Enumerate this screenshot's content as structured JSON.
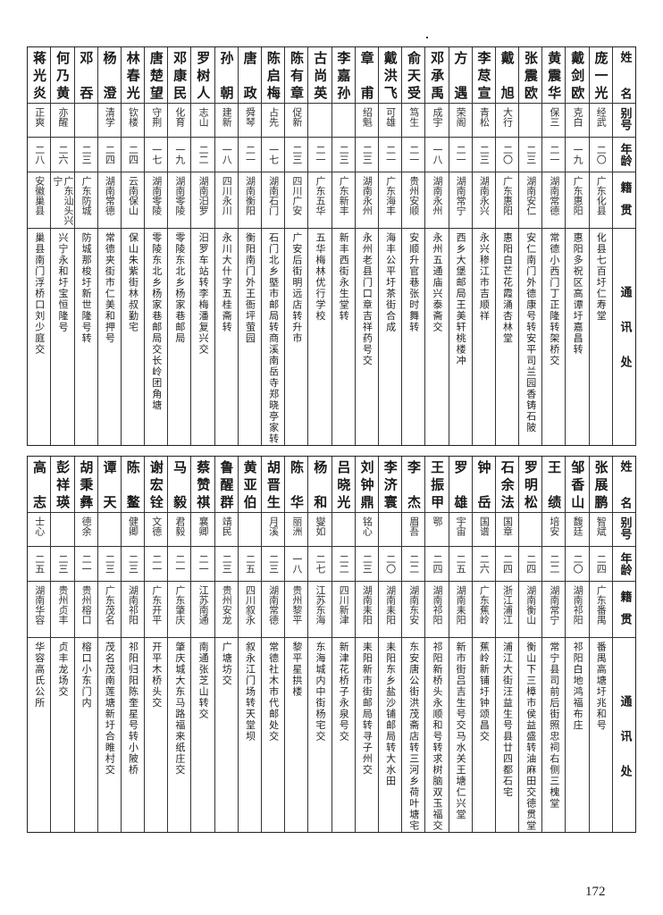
{
  "header": {
    "name": "姓名",
    "alias": "别号",
    "age": "年龄",
    "origin": "籍贯",
    "address": "通讯处"
  },
  "top_rows": [
    {
      "name": "庞一光",
      "alias": "经武",
      "age": "二〇",
      "origin": "广东化县",
      "address": "化县七百圩仁寿堂"
    },
    {
      "name": "戴剑欧",
      "alias": "克白",
      "age": "一九",
      "origin": "广东惠阳",
      "address": "惠阳多祝区高谭圩嘉昌转"
    },
    {
      "name": "黄震华",
      "alias": "保三",
      "age": "二一",
      "origin": "湖南常德",
      "address": "常德小西门丁正隆转架桥交"
    },
    {
      "name": "张震欧",
      "alias": "",
      "age": "二三",
      "origin": "湖南安仁",
      "address": "安仁南门外德康号转安平司兰园香铸石陂"
    },
    {
      "name": "戴　旭",
      "alias": "大行",
      "age": "二〇",
      "origin": "广东惠阳",
      "address": "惠阳白芒花霞涌杏林堂"
    },
    {
      "name": "李荩宣",
      "alias": "青松",
      "age": "二三",
      "origin": "湖南永兴",
      "address": "永兴䅟江市吉顺祥"
    },
    {
      "name": "方　遇",
      "alias": "荣阁",
      "age": "二一",
      "origin": "湖南常宁",
      "address": "西乡大堡邮局王美轩桃楼冲"
    },
    {
      "name": "邓承禹",
      "alias": "成宇",
      "age": "一八",
      "origin": "湖南永州",
      "address": "永州五通庙兴泰斋交"
    },
    {
      "name": "俞天受",
      "alias": "笃生",
      "age": "二一",
      "origin": "贵州安顺",
      "address": "安顺升官巷张时舞转"
    },
    {
      "name": "戴洪飞",
      "alias": "可雄",
      "age": "二一",
      "origin": "广东海丰",
      "address": "海丰公平圩茶街合成"
    },
    {
      "name": "章　甫",
      "alias": "绍魁",
      "age": "二三",
      "origin": "湖南永州",
      "address": "永州老县门口章吉祥药号交"
    },
    {
      "name": "李嘉孙",
      "alias": "",
      "age": "二三",
      "origin": "广东新丰",
      "address": "新丰西街永生堂转"
    },
    {
      "name": "古尚英",
      "alias": "",
      "age": "二一",
      "origin": "广东五华",
      "address": "五华梅林优行学校"
    },
    {
      "name": "陈有章",
      "alias": "促新",
      "age": "二三",
      "origin": "四川广安",
      "address": "广安后街明远店转升市"
    },
    {
      "name": "陈启梅",
      "alias": "占先",
      "age": "一七",
      "origin": "湖南石门",
      "address": "石门北乡塈市邮局转商溪南岳寺郑晓亭家转"
    },
    {
      "name": "唐　政",
      "alias": "舜琴",
      "age": "二一",
      "origin": "湖南衡阳",
      "address": "衡阳南门外王衙坪萤园"
    },
    {
      "name": "孙　朝",
      "alias": "建新",
      "age": "一八",
      "origin": "四川永川",
      "address": "永川大什字五桂斋转"
    },
    {
      "name": "罗树人",
      "alias": "志山",
      "age": "二二",
      "origin": "湖南汨罗",
      "address": "汨罗车站转李梅潘复兴交"
    },
    {
      "name": "邓康民",
      "alias": "化育",
      "age": "一九",
      "origin": "湖南零陵",
      "address": "零陵东北乡杨家巷邮局"
    },
    {
      "name": "唐楚望",
      "alias": "守荆",
      "age": "一七",
      "origin": "湖南零陵",
      "address": "零陵东北乡杨家巷邮局交长岭团角塘"
    },
    {
      "name": "林春光",
      "alias": "钦楼",
      "age": "二四",
      "origin": "云南保山",
      "address": "保山朱紫街林叔勤宅"
    },
    {
      "name": "杨　澄",
      "alias": "清学",
      "age": "二四",
      "origin": "湖南常德",
      "address": "常德夹街市仁美和押号"
    },
    {
      "name": "邓　吞",
      "alias": "",
      "age": "二三",
      "origin": "广东防城",
      "address": "防城那梭圩新世隆号转"
    },
    {
      "name": "何乃黄",
      "alias": "亦醒",
      "age": "二六",
      "origin": "广东汕头兴宁",
      "address": "兴宁永和圩宝恒隆号"
    },
    {
      "name": "蒋光炎",
      "alias": "正爽",
      "age": "二八",
      "origin": "安徽巢县",
      "address": "巢县南门浮桥口刘少庭交"
    }
  ],
  "bottom_rows": [
    {
      "name": "张展鹏",
      "alias": "智斌",
      "age": "二四",
      "origin": "广东番禺",
      "address": "番禺高塘圩兆和号"
    },
    {
      "name": "邹香山",
      "alias": "馥廷",
      "age": "二〇",
      "origin": "湖南祁阳",
      "address": "祁阳白地鸿福布庄"
    },
    {
      "name": "王　绩",
      "alias": "培安",
      "age": "二二",
      "origin": "湖南常宁",
      "address": "常宁县司前后街照忠祠右侧三槐堂"
    },
    {
      "name": "罗明松",
      "alias": "",
      "age": "二四",
      "origin": "湖南衡山",
      "address": "衡山下三樟市侯益盛转油麻田交德贯堂"
    },
    {
      "name": "石余法",
      "alias": "国章",
      "age": "二四",
      "origin": "浙江浦江",
      "address": "浦江大街汪益生号县廿四都石宅"
    },
    {
      "name": "钟　岳",
      "alias": "国谱",
      "age": "二六",
      "origin": "广东蕉岭",
      "address": "蕉岭新铺圩钟颂昌交"
    },
    {
      "name": "罗　雄",
      "alias": "宇宙",
      "age": "二五",
      "origin": "湖南耒阳",
      "address": "新市街吕吉生号交马水关王塘仁兴堂"
    },
    {
      "name": "王振甲",
      "alias": "鄂",
      "age": "二四",
      "origin": "湖南祁阳",
      "address": "祁阳新桥头永顺和号转求树脑双玉福交"
    },
    {
      "name": "李　杰",
      "alias": "眉吾",
      "age": "二二",
      "origin": "湖南东安",
      "address": "东安唐公街洪茂斋店转三河乡荷叶塘宅"
    },
    {
      "name": "李济寰",
      "alias": "",
      "age": "二〇",
      "origin": "湖南耒阳",
      "address": "耒阳东乡盐沙铺邮局转大水田"
    },
    {
      "name": "刘钟鼎",
      "alias": "铭心",
      "age": "二三",
      "origin": "湖南耒阳",
      "address": "耒阳新市街邮局转寻子州交"
    },
    {
      "name": "吕晓光",
      "alias": "",
      "age": "二二",
      "origin": "四川新津",
      "address": "新津花桥子永泉号交"
    },
    {
      "name": "杨　和",
      "alias": "燮如",
      "age": "二七",
      "origin": "江苏东海",
      "address": "东海城内中街杨宅交"
    },
    {
      "name": "陈　华",
      "alias": "丽洲",
      "age": "一八",
      "origin": "贵州黎平",
      "address": "黎平星拱楼"
    },
    {
      "name": "胡晋生",
      "alias": "月溪",
      "age": "二三",
      "origin": "湖南常德",
      "address": "常德社木市代邮处交"
    },
    {
      "name": "黄亚伯",
      "alias": "",
      "age": "二五",
      "origin": "四川叙永",
      "address": "叙永江门场转天堂坝"
    },
    {
      "name": "鲁醒群",
      "alias": "靖民",
      "age": "二三",
      "origin": "贵州安龙",
      "address": "广塘坊交"
    },
    {
      "name": "蔡赞祺",
      "alias": "襄卿",
      "age": "二一",
      "origin": "江苏南通",
      "address": "南通张芝山转交"
    },
    {
      "name": "马　毅",
      "alias": "君毅",
      "age": "二一",
      "origin": "广东肇庆",
      "address": "肇庆城大东马路福来纸庄交"
    },
    {
      "name": "谢宏铨",
      "alias": "文德",
      "age": "二一",
      "origin": "广东开平",
      "address": "开平木桥头交"
    },
    {
      "name": "陈　鳌",
      "alias": "健卿",
      "age": "二三",
      "origin": "湖南祁阳",
      "address": "祁阳归阳陈奎星号转小陂桥"
    },
    {
      "name": "谭　天",
      "alias": "",
      "age": "二三",
      "origin": "广东茂名",
      "address": "茂名茂南莲塘新圩合睢村交"
    },
    {
      "name": "胡秉彝",
      "alias": "德余",
      "age": "二一",
      "origin": "贵州榕口",
      "address": "榕口小东门内"
    },
    {
      "name": "彭祥瑛",
      "alias": "",
      "age": "二三",
      "origin": "贵州贞丰",
      "address": "贞丰龙场交"
    },
    {
      "name": "高　志",
      "alias": "士心",
      "age": "二五",
      "origin": "湖南华容",
      "address": "华容高氏公所"
    }
  ],
  "page_number": "172"
}
